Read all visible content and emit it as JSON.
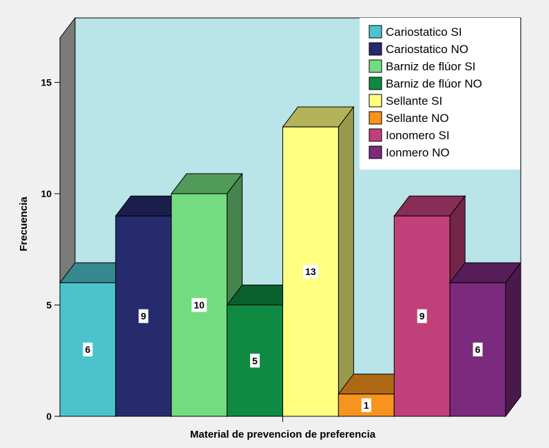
{
  "chart_data": {
    "type": "bar",
    "title": "",
    "xlabel": "Material de prevencion de preferencia",
    "ylabel": "Frecuencia",
    "ylim": [
      0,
      17
    ],
    "yticks": [
      0,
      5,
      10,
      15
    ],
    "three_d": true,
    "legend_position": "top-right",
    "categories": [
      "Cariostatico SI",
      "Cariostatico NO",
      "Barniz de flúor SI",
      "Barniz de flúor NO",
      "Sellante SI",
      "Sellante NO",
      "Ionomero SI",
      "Ionmero NO"
    ],
    "values": [
      6,
      9,
      10,
      5,
      13,
      1,
      9,
      6
    ],
    "data_labels": [
      "6",
      "9",
      "10",
      "5",
      "13",
      "1",
      "9",
      "6"
    ],
    "colors": [
      "#4cc3cc",
      "#262b6e",
      "#74dc80",
      "#0f8a42",
      "#ffff80",
      "#f7941d",
      "#c2407a",
      "#7b2a7d"
    ],
    "background_colors": {
      "page": "#f0f0f0",
      "plot_back_wall": "#b9e4e8",
      "side_wall": "#7a7a7a"
    }
  }
}
